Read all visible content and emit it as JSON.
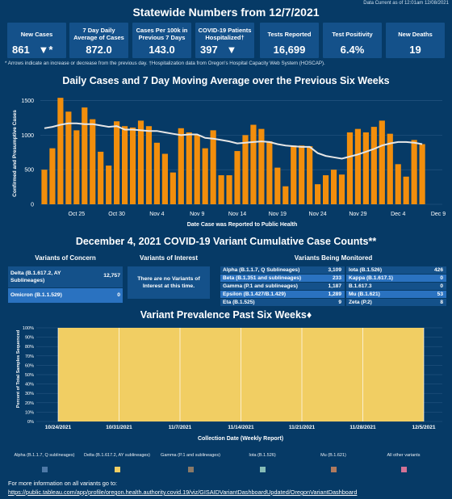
{
  "header": {
    "data_current": "Data Current as of 12:01am 12/08/2021",
    "title": "Statewide Numbers from 12/7/2021"
  },
  "stats": [
    {
      "label": "New Cases",
      "value": "861",
      "arrow": "▼*"
    },
    {
      "label": "7 Day Daily Average of Cases",
      "value": "872.0"
    },
    {
      "label": "Cases Per 100k in Previous 7 Days",
      "value": "143.0"
    },
    {
      "label": "COVID-19 Patients Hospitalized†",
      "value": "397",
      "arrow": "▼"
    },
    {
      "label": "Tests Reported",
      "value": "16,699"
    },
    {
      "label": "Test Positivity",
      "value": "6.4%"
    },
    {
      "label": "New Deaths",
      "value": "19"
    }
  ],
  "note": "* Arrows indicate an increase or decrease from the previous day. †Hospitalization data from Oregon's Hospital Capacity Web System (HOSCAP).",
  "chart1_title": "Daily Cases and 7 Day Moving Average over the Previous Six Weeks",
  "variants_title": "December 4, 2021 COVID-19 Variant Cumulative Case Counts**",
  "concern": {
    "title": "Variants of Concern",
    "rows": [
      {
        "name": "Delta (B.1.617.2, AY Sublineages)",
        "count": "12,757"
      },
      {
        "name": "Omicron (B.1.1.529)",
        "count": "0"
      }
    ]
  },
  "interest": {
    "title": "Variants of Interest",
    "text": "There are no Variants of Interest at this time."
  },
  "monitored": {
    "title": "Variants Being Monitored",
    "left": [
      {
        "name": "Alpha (B.1.1.7, Q Sublineages)",
        "count": "3,109"
      },
      {
        "name": "Beta (B.1.351 and sublineages)",
        "count": "233"
      },
      {
        "name": "Gamma (P.1 and sublineages)",
        "count": "1,187"
      },
      {
        "name": "Epsilon (B.1.427/B.1.429)",
        "count": "1,289"
      },
      {
        "name": "Eta (B.1.525)",
        "count": "9"
      }
    ],
    "right": [
      {
        "name": "Iota (B.1.526)",
        "count": "426"
      },
      {
        "name": "Kappa (B.1.617.1)",
        "count": "0"
      },
      {
        "name": "B.1.617.3",
        "count": "0"
      },
      {
        "name": "Mu (B.1.621)",
        "count": "53"
      },
      {
        "name": "Zeta (P.2)",
        "count": "8"
      }
    ]
  },
  "chart2_title": "Variant Prevalence Past Six Weeks♦",
  "legend": [
    {
      "name": "Alpha (B.1.1.7, Q sublineages)",
      "color": "#4e79a7"
    },
    {
      "name": "Delta (B.1.617.2, AY sublineages)",
      "color": "#f1ce63"
    },
    {
      "name": "Gamma (P.1 and sublineages)",
      "color": "#8a7967"
    },
    {
      "name": "Iota (B.1.526)",
      "color": "#86bcb6"
    },
    {
      "name": "Mu (B.1.621)",
      "color": "#b07a5e"
    },
    {
      "name": "All other variants",
      "color": "#d37295"
    }
  ],
  "footer": {
    "line1": "For more information on all variants go to:",
    "link": "https://public.tableau.com/app/profile/oregon.health.authority.covid.19/viz/GISAIDVariantDashboardUpdated/OregonVariantDashboard"
  },
  "colors": {
    "background": "#063a66",
    "card": "#14518a",
    "bar": "#f28e0c",
    "delta": "#f1ce63"
  },
  "chart_data": [
    {
      "type": "bar",
      "title": "Daily Cases and 7 Day Moving Average over the Previous Six Weeks",
      "xlabel": "Date Case was Reported to Public Health",
      "ylabel": "Confirmed and Presumptive Cases",
      "ylim": [
        0,
        1600
      ],
      "yticks": [
        "1500",
        "1000",
        "500",
        "0"
      ],
      "xtick_labels": [
        "Oct 25",
        "Oct 30",
        "Nov 4",
        "Nov 9",
        "Nov 14",
        "Nov 19",
        "Nov 24",
        "Nov 29",
        "Dec 4",
        "Dec 9"
      ],
      "categories": [
        "Oct 21",
        "Oct 22",
        "Oct 23",
        "Oct 24",
        "Oct 25",
        "Oct 26",
        "Oct 27",
        "Oct 28",
        "Oct 29",
        "Oct 30",
        "Oct 31",
        "Nov 1",
        "Nov 2",
        "Nov 3",
        "Nov 4",
        "Nov 5",
        "Nov 6",
        "Nov 7",
        "Nov 8",
        "Nov 9",
        "Nov 10",
        "Nov 11",
        "Nov 12",
        "Nov 13",
        "Nov 14",
        "Nov 15",
        "Nov 16",
        "Nov 17",
        "Nov 18",
        "Nov 19",
        "Nov 20",
        "Nov 21",
        "Nov 22",
        "Nov 23",
        "Nov 24",
        "Nov 25",
        "Nov 26",
        "Nov 27",
        "Nov 28",
        "Nov 29",
        "Nov 30",
        "Dec 1",
        "Dec 2",
        "Dec 3",
        "Dec 4",
        "Dec 5",
        "Dec 6",
        "Dec 7"
      ],
      "series": [
        {
          "values": [
            500,
            810,
            1540,
            1340,
            1070,
            1400,
            1230,
            760,
            560,
            1200,
            1130,
            1110,
            1210,
            1130,
            890,
            730,
            460,
            1100,
            1040,
            1000,
            810,
            1070,
            420,
            420,
            770,
            1000,
            1150,
            1090,
            910,
            530,
            260,
            850,
            850,
            840,
            290,
            420,
            500,
            430,
            1040,
            1090,
            1040,
            1120,
            1210,
            1020,
            580,
            400,
            930,
            870
          ]
        },
        {
          "values": [
            1100,
            1120,
            1150,
            1170,
            1170,
            1160,
            1160,
            1140,
            1120,
            1130,
            1080,
            1080,
            1070,
            1060,
            1060,
            1040,
            1020,
            1000,
            1010,
            1010,
            960,
            950,
            930,
            910,
            880,
            890,
            900,
            910,
            900,
            870,
            850,
            840,
            830,
            830,
            740,
            700,
            680,
            660,
            690,
            720,
            760,
            800,
            850,
            880,
            900,
            900,
            890,
            870
          ]
        }
      ]
    },
    {
      "type": "area",
      "title": "Variant Prevalence Past Six Weeks♦",
      "xlabel": "Collection Date (Weekly Report)",
      "ylabel": "Percent of Total Samples Sequenced",
      "ylim": [
        0,
        100
      ],
      "yticks": [
        "100%",
        "90%",
        "80%",
        "70%",
        "60%",
        "50%",
        "40%",
        "30%",
        "20%",
        "10%",
        "0%"
      ],
      "categories": [
        "10/24/2021",
        "10/31/2021",
        "11/7/2021",
        "11/14/2021",
        "11/21/2021",
        "11/28/2021",
        "12/5/2021"
      ],
      "series": [
        {
          "name": "Delta (B.1.617.2, AY sublineages)",
          "values": [
            100,
            100,
            100,
            100,
            100,
            100,
            100
          ]
        }
      ]
    }
  ]
}
